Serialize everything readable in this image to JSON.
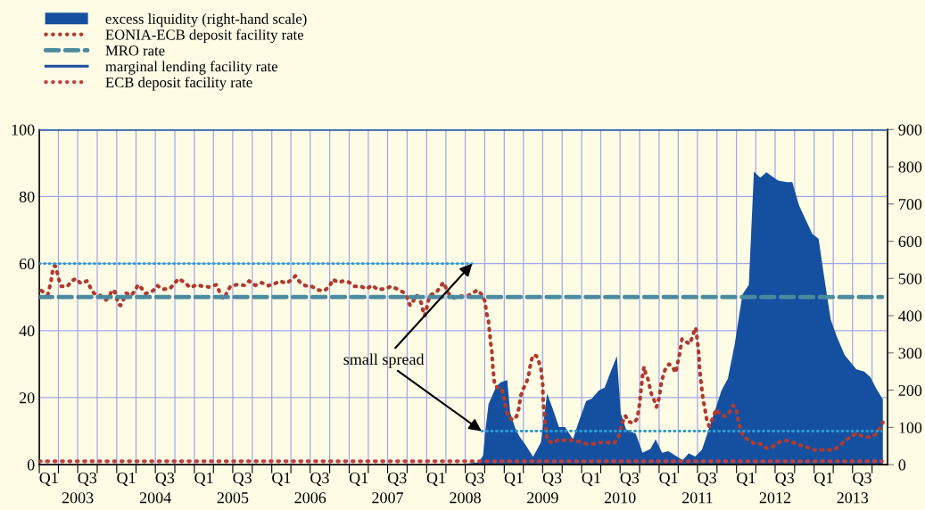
{
  "chart_data": {
    "type": "line",
    "series": [
      {
        "name": "excess liquidity (right-hand scale)",
        "type": "area",
        "axis": "y2",
        "color": "#1550a0",
        "x": [
          "2003-01-01",
          "2007-08-07",
          "2008-06-23",
          "2008-09-02",
          "2008-09-23",
          "2008-10-04",
          "2008-10-19",
          "2008-11-10",
          "2008-11-25",
          "2008-12-16",
          "2009-01-15",
          "2009-01-29",
          "2009-02-21",
          "2009-03-13",
          "2009-04-08",
          "2009-05-17",
          "2009-06-23",
          "2009-07-22",
          "2009-08-17",
          "2009-09-16",
          "2009-10-15",
          "2009-11-21",
          "2009-12-13",
          "2010-01-22",
          "2010-02-17",
          "2010-03-23",
          "2010-04-19",
          "2010-05-21",
          "2010-06-16",
          "2010-07-04",
          "2010-07-29",
          "2010-09-13",
          "2010-10-15",
          "2010-11-21",
          "2010-12-16",
          "2011-01-15",
          "2011-02-14",
          "2011-04-22",
          "2011-05-21",
          "2011-06-20",
          "2011-07-22",
          "2011-08-28",
          "2011-10-22",
          "2011-11-21",
          "2011-12-23",
          "2012-01-29",
          "2012-02-28",
          "2012-03-23",
          "2012-04-22",
          "2012-05-21",
          "2012-07-15",
          "2012-08-25",
          "2012-09-20",
          "2012-10-22",
          "2012-12-23",
          "2013-01-22",
          "2013-02-17",
          "2013-03-20",
          "2013-04-19",
          "2013-05-25",
          "2013-07-19",
          "2013-08-25",
          "2013-09-23",
          "2013-10-22",
          "2013-11-21"
        ],
        "values": [
          0,
          0,
          2,
          6,
          24,
          91,
          163,
          191,
          211,
          221,
          227,
          139,
          99,
          76,
          56,
          21,
          60,
          191,
          151,
          101,
          101,
          68,
          107,
          171,
          177,
          199,
          207,
          254,
          292,
          139,
          95,
          83,
          32,
          42,
          68,
          32,
          36,
          12,
          30,
          22,
          40,
          103,
          199,
          231,
          322,
          457,
          483,
          787,
          771,
          785,
          763,
          759,
          759,
          696,
          620,
          607,
          505,
          390,
          342,
          294,
          256,
          250,
          235,
          203,
          175
        ]
      },
      {
        "name": "EONIA-ECB deposit facility rate",
        "color": "#b03a30",
        "line_style": "dotted",
        "x": [
          "2003-01-11",
          "2003-02-10",
          "2003-02-17",
          "2003-02-25",
          "2003-03-02",
          "2003-03-09",
          "2003-03-16",
          "2003-03-27",
          "2003-04-04",
          "2003-04-15",
          "2003-05-14",
          "2003-06-02",
          "2003-06-23",
          "2003-07-15",
          "2003-08-14",
          "2003-08-28",
          "2003-09-16",
          "2003-10-15",
          "2003-11-10",
          "2003-11-28",
          "2003-12-09",
          "2003-12-23",
          "2004-01-01",
          "2004-01-11",
          "2004-01-19",
          "2004-02-03",
          "2004-02-14",
          "2004-03-09",
          "2004-03-27",
          "2004-04-11",
          "2004-04-29",
          "2004-05-17",
          "2004-06-20",
          "2004-07-11",
          "2004-08-07",
          "2004-09-09",
          "2004-10-01",
          "2004-10-19",
          "2004-11-17",
          "2004-12-13",
          "2005-01-11",
          "2005-02-10",
          "2005-03-13",
          "2005-04-15",
          "2005-04-26",
          "2005-05-10",
          "2005-05-21",
          "2005-06-05",
          "2005-06-20",
          "2005-07-19",
          "2005-08-25",
          "2005-09-16",
          "2005-10-15",
          "2005-11-14",
          "2005-12-16",
          "2006-01-11",
          "2006-02-10",
          "2006-03-09",
          "2006-04-04",
          "2006-04-22",
          "2006-05-14",
          "2006-06-09",
          "2006-07-08",
          "2006-08-07",
          "2006-09-05",
          "2006-10-01",
          "2006-10-15",
          "2006-11-10",
          "2006-12-05",
          "2007-01-01",
          "2007-01-26",
          "2007-02-25",
          "2007-03-23",
          "2007-04-19",
          "2007-05-17",
          "2007-06-20",
          "2007-07-19",
          "2007-08-25",
          "2007-09-20",
          "2007-10-04",
          "2007-10-15",
          "2007-10-29",
          "2007-11-14",
          "2007-11-28",
          "2007-12-09",
          "2007-12-16",
          "2007-12-23",
          "2008-01-01",
          "2008-01-08",
          "2008-01-19",
          "2008-02-14",
          "2008-03-05",
          "2008-03-20",
          "2008-04-04",
          "2008-04-19",
          "2008-05-07",
          "2008-06-05",
          "2008-07-08",
          "2008-08-03",
          "2008-08-28",
          "2008-09-16",
          "2008-10-01",
          "2008-10-11",
          "2008-10-19",
          "2008-10-22",
          "2008-10-26",
          "2008-10-29",
          "2008-11-03",
          "2008-11-07",
          "2008-11-10",
          "2008-11-14",
          "2008-11-17",
          "2008-12-02",
          "2008-12-20",
          "2008-12-27",
          "2009-01-04",
          "2009-01-11",
          "2009-01-19",
          "2009-02-10",
          "2009-02-28",
          "2009-03-09",
          "2009-03-20",
          "2009-04-01",
          "2009-04-15",
          "2009-04-26",
          "2009-05-07",
          "2009-05-17",
          "2009-06-02",
          "2009-06-13",
          "2009-06-23",
          "2009-06-27",
          "2009-07-01",
          "2009-07-04",
          "2009-07-08",
          "2009-07-11",
          "2009-07-15",
          "2009-07-19",
          "2009-07-22",
          "2009-08-17",
          "2009-09-16",
          "2009-10-19",
          "2009-11-21",
          "2009-12-23",
          "2010-01-26",
          "2010-02-28",
          "2010-04-01",
          "2010-05-03",
          "2010-06-02",
          "2010-06-23",
          "2010-07-08",
          "2010-07-26",
          "2010-08-10",
          "2010-09-02",
          "2010-09-20",
          "2010-10-01",
          "2010-10-08",
          "2010-10-15",
          "2010-10-22",
          "2010-10-29",
          "2010-11-10",
          "2010-11-25",
          "2010-12-09",
          "2010-12-20",
          "2011-01-01",
          "2011-01-11",
          "2011-01-19",
          "2011-01-29",
          "2011-02-17",
          "2011-03-05",
          "2011-03-20",
          "2011-03-27",
          "2011-04-08",
          "2011-04-19",
          "2011-05-07",
          "2011-05-25",
          "2011-06-09",
          "2011-06-16",
          "2011-06-23",
          "2011-07-01",
          "2011-07-08",
          "2011-07-11",
          "2011-07-19",
          "2011-07-26",
          "2011-08-07",
          "2011-08-14",
          "2011-08-25",
          "2011-09-13",
          "2011-09-27",
          "2011-10-15",
          "2011-11-07",
          "2011-11-28",
          "2011-12-16",
          "2012-01-01",
          "2012-01-11",
          "2012-01-22",
          "2012-02-03",
          "2012-02-28",
          "2012-03-27",
          "2012-04-29",
          "2012-05-21",
          "2012-06-23",
          "2012-07-22",
          "2012-08-25",
          "2012-09-23",
          "2012-10-22",
          "2012-11-25",
          "2012-12-27",
          "2013-01-29",
          "2013-03-02",
          "2013-04-04",
          "2013-05-03",
          "2013-05-25",
          "2013-06-23",
          "2013-07-19",
          "2013-08-21",
          "2013-09-23",
          "2013-10-19",
          "2013-11-07",
          "2013-11-21"
        ],
        "values": [
          51.9,
          50.7,
          52.5,
          54.6,
          56.9,
          59.0,
          59.4,
          57.2,
          55.1,
          53.2,
          53.2,
          54.8,
          55.5,
          54.1,
          54.8,
          53.0,
          51.1,
          50.5,
          49.1,
          50.2,
          52.1,
          51.6,
          49.6,
          47.7,
          47.5,
          49.4,
          51.2,
          50.5,
          51.9,
          53.7,
          52.5,
          51.0,
          51.9,
          53.4,
          52.3,
          52.6,
          54.2,
          55.5,
          54.3,
          52.8,
          53.7,
          53.2,
          53.0,
          53.7,
          52.1,
          50.0,
          49.5,
          51.6,
          53.2,
          53.7,
          53.5,
          54.8,
          53.5,
          54.3,
          53.4,
          53.9,
          54.8,
          54.1,
          55.1,
          56.3,
          54.4,
          53.4,
          53.2,
          52.1,
          51.9,
          53.2,
          55.3,
          54.4,
          54.8,
          54.4,
          53.2,
          53.2,
          52.4,
          53.5,
          52.2,
          52.5,
          53.2,
          52.1,
          51.2,
          49.4,
          47.5,
          48.7,
          50.6,
          49.6,
          47.8,
          45.7,
          44.4,
          46.6,
          48.7,
          50.7,
          51.2,
          53.0,
          54.4,
          52.3,
          50.5,
          49.8,
          50.3,
          50.2,
          51.1,
          52.1,
          50.8,
          48.9,
          44.8,
          42.7,
          40.6,
          38.4,
          36.2,
          34.2,
          30.0,
          27.8,
          25.6,
          23.6,
          23.0,
          22.8,
          20.8,
          18.6,
          16.3,
          14.4,
          13.3,
          14.4,
          16.3,
          20.6,
          22.7,
          24.3,
          26.8,
          30.7,
          32.7,
          32.4,
          30.7,
          28.5,
          26.2,
          24.3,
          18.1,
          15.9,
          13.7,
          11.5,
          9.5,
          7.3,
          6.4,
          7.5,
          7.2,
          7.3,
          6.8,
          6.2,
          6.2,
          6.6,
          6.6,
          6.4,
          8.0,
          11.9,
          14.6,
          12.8,
          12.4,
          13.7,
          18.1,
          22.5,
          26.5,
          29.2,
          27.4,
          25.4,
          21.2,
          19.2,
          17.2,
          19.9,
          24.3,
          26.2,
          28.3,
          30.0,
          29.2,
          27.4,
          29.6,
          33.1,
          37.5,
          36.7,
          36.0,
          38.4,
          40.0,
          40.9,
          36.7,
          32.4,
          28.3,
          23.9,
          20.1,
          15.9,
          13.3,
          11.5,
          14.1,
          16.5,
          15.0,
          14.4,
          15.6,
          17.7,
          16.3,
          12.4,
          10.2,
          8.4,
          7.2,
          6.2,
          6.2,
          4.9,
          5.5,
          6.8,
          7.2,
          6.6,
          5.9,
          5.3,
          4.4,
          4.4,
          4.4,
          4.4,
          5.7,
          7.1,
          8.4,
          9.3,
          8.4,
          8.1,
          9.1,
          10.9,
          12.6
        ]
      },
      {
        "name": "MRO rate",
        "color": "#4a8aa0",
        "line_style": "dashed",
        "x": [
          "2003-01-01",
          "2013-11-17"
        ],
        "values": [
          50,
          50
        ]
      },
      {
        "name": "marginal lending facility rate",
        "color": "#1a4fa0",
        "line_style": "solid",
        "x": [
          "2003-01-01",
          "2013-12-02"
        ],
        "values": [
          100,
          100
        ]
      },
      {
        "name": "ECB deposit facility rate",
        "color": "#c04040",
        "line_style": "dotted",
        "x": [
          "2003-01-01",
          "2013-11-17"
        ],
        "values": [
          1,
          1
        ]
      },
      {
        "color": "#2a9ad0",
        "line_style": "dotted",
        "x": [
          "2003-01-01",
          "2008-08-03"
        ],
        "values": [
          60,
          60
        ]
      },
      {
        "color": "#2a9ad0",
        "line_style": "dotted",
        "x": [
          "2008-09-16",
          "2013-11-17"
        ],
        "values": [
          10,
          10
        ]
      }
    ],
    "xlim": [
      "2003-01-01",
      "2013-12-13"
    ],
    "xticks": [
      {
        "value": "2003-01-01",
        "label": null
      },
      {
        "value": "2003-02-15",
        "label": "Q1"
      },
      {
        "value": "2003-04-01",
        "label": null
      },
      {
        "value": "2003-07-01",
        "label": null
      },
      {
        "value": "2003-08-15",
        "label": "Q3"
      },
      {
        "value": "2003-10-01",
        "label": null
      },
      {
        "value": "2004-01-01",
        "label": null
      },
      {
        "value": "2004-02-15",
        "label": "Q1"
      },
      {
        "value": "2004-04-01",
        "label": null
      },
      {
        "value": "2004-07-01",
        "label": null
      },
      {
        "value": "2004-08-15",
        "label": "Q3"
      },
      {
        "value": "2004-10-01",
        "label": null
      },
      {
        "value": "2005-01-01",
        "label": null
      },
      {
        "value": "2005-02-15",
        "label": "Q1"
      },
      {
        "value": "2005-04-01",
        "label": null
      },
      {
        "value": "2005-07-01",
        "label": null
      },
      {
        "value": "2005-08-15",
        "label": "Q3"
      },
      {
        "value": "2005-10-01",
        "label": null
      },
      {
        "value": "2006-01-01",
        "label": null
      },
      {
        "value": "2006-02-15",
        "label": "Q1"
      },
      {
        "value": "2006-04-01",
        "label": null
      },
      {
        "value": "2006-07-01",
        "label": null
      },
      {
        "value": "2006-08-15",
        "label": "Q3"
      },
      {
        "value": "2006-10-01",
        "label": null
      },
      {
        "value": "2007-01-01",
        "label": null
      },
      {
        "value": "2007-02-15",
        "label": "Q1"
      },
      {
        "value": "2007-04-01",
        "label": null
      },
      {
        "value": "2007-07-01",
        "label": null
      },
      {
        "value": "2007-08-15",
        "label": "Q3"
      },
      {
        "value": "2007-10-01",
        "label": null
      },
      {
        "value": "2008-01-01",
        "label": null
      },
      {
        "value": "2008-02-15",
        "label": "Q1"
      },
      {
        "value": "2008-04-01",
        "label": null
      },
      {
        "value": "2008-07-01",
        "label": null
      },
      {
        "value": "2008-08-15",
        "label": "Q3"
      },
      {
        "value": "2008-10-01",
        "label": null
      },
      {
        "value": "2009-01-01",
        "label": null
      },
      {
        "value": "2009-02-15",
        "label": "Q1"
      },
      {
        "value": "2009-04-01",
        "label": null
      },
      {
        "value": "2009-07-01",
        "label": null
      },
      {
        "value": "2009-08-15",
        "label": "Q3"
      },
      {
        "value": "2009-10-01",
        "label": null
      },
      {
        "value": "2010-01-01",
        "label": null
      },
      {
        "value": "2010-02-15",
        "label": "Q1"
      },
      {
        "value": "2010-04-01",
        "label": null
      },
      {
        "value": "2010-07-01",
        "label": null
      },
      {
        "value": "2010-08-15",
        "label": "Q3"
      },
      {
        "value": "2010-10-01",
        "label": null
      },
      {
        "value": "2011-01-01",
        "label": null
      },
      {
        "value": "2011-02-15",
        "label": "Q1"
      },
      {
        "value": "2011-04-01",
        "label": null
      },
      {
        "value": "2011-07-01",
        "label": null
      },
      {
        "value": "2011-08-15",
        "label": "Q3"
      },
      {
        "value": "2011-10-01",
        "label": null
      },
      {
        "value": "2012-01-01",
        "label": null
      },
      {
        "value": "2012-02-15",
        "label": "Q1"
      },
      {
        "value": "2012-04-01",
        "label": null
      },
      {
        "value": "2012-07-01",
        "label": null
      },
      {
        "value": "2012-08-15",
        "label": "Q3"
      },
      {
        "value": "2012-10-01",
        "label": null
      },
      {
        "value": "2013-01-01",
        "label": null
      },
      {
        "value": "2013-02-15",
        "label": "Q1"
      },
      {
        "value": "2013-04-01",
        "label": null
      },
      {
        "value": "2013-07-01",
        "label": null
      },
      {
        "value": "2013-08-15",
        "label": "Q3"
      },
      {
        "value": "2013-10-01",
        "label": null
      }
    ],
    "x2lim": [
      "2003-01-01",
      "2013-12-13"
    ],
    "x2ticks": [
      {
        "value": "2003-07-01",
        "label": "2003"
      },
      {
        "value": "2004-07-01",
        "label": "2004"
      },
      {
        "value": "2005-07-01",
        "label": "2005"
      },
      {
        "value": "2006-07-01",
        "label": "2006"
      },
      {
        "value": "2007-07-01",
        "label": "2007"
      },
      {
        "value": "2008-07-01",
        "label": "2008"
      },
      {
        "value": "2009-07-01",
        "label": "2009"
      },
      {
        "value": "2010-07-01",
        "label": "2010"
      },
      {
        "value": "2011-07-01",
        "label": "2011"
      },
      {
        "value": "2012-07-01",
        "label": "2012"
      },
      {
        "value": "2013-07-01",
        "label": "2013"
      }
    ],
    "ylim": [
      0,
      100
    ],
    "yticks": [
      0,
      20,
      40,
      60,
      80,
      100
    ],
    "y2lim": [
      0,
      900
    ],
    "y2ticks": [
      0,
      100,
      200,
      300,
      400,
      500,
      600,
      700,
      800,
      900
    ],
    "grid": true,
    "legend": "top left",
    "annotations": [
      {
        "text": "small spread",
        "x": "2008-08-03",
        "y": 60
      }
    ]
  }
}
